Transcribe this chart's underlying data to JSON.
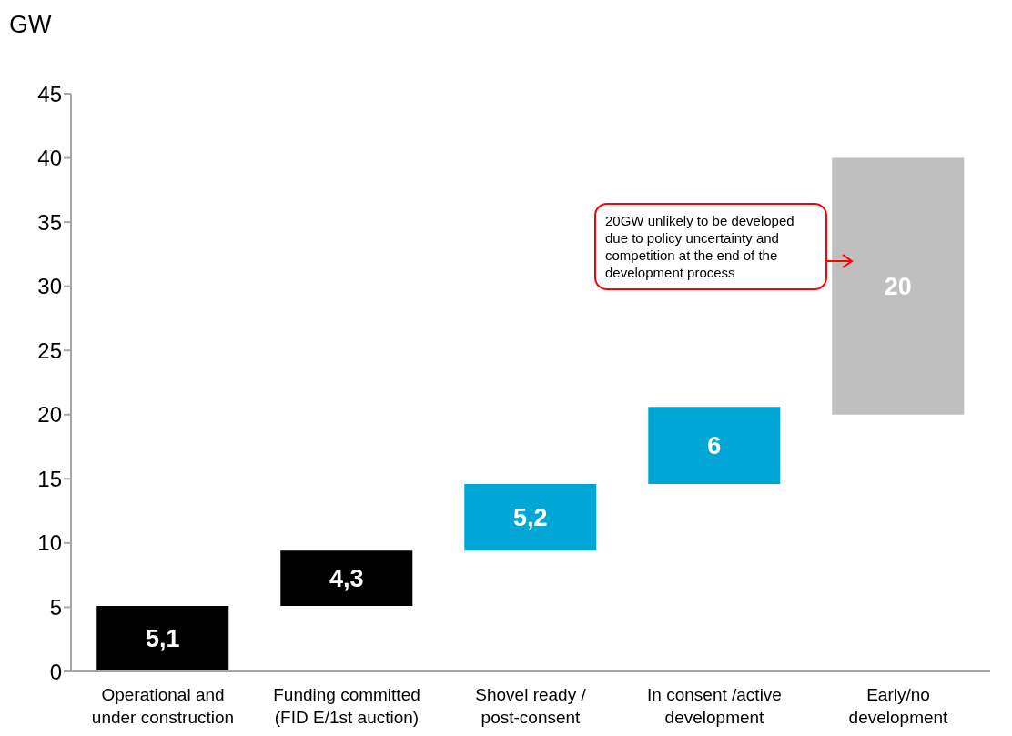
{
  "chart_data": {
    "type": "bar",
    "ylabel": "GW",
    "categories": [
      "Operational and under construction",
      "Funding committed (FID E/1st auction)",
      "Shovel ready / post-consent",
      "In consent /active development",
      "Early/no development"
    ],
    "values": [
      5.1,
      4.3,
      5.2,
      6,
      20
    ],
    "base": [
      0,
      5.1,
      9.4,
      14.6,
      20
    ],
    "colors": [
      "#000000",
      "#000000",
      "#00a6d6",
      "#00a6d6",
      "#bfbfbf"
    ],
    "value_labels": [
      "5,1",
      "4,3",
      "5,2",
      "6",
      "20"
    ],
    "ylim": [
      0,
      45
    ],
    "yticks": [
      0,
      5,
      10,
      15,
      20,
      25,
      30,
      35,
      40,
      45
    ],
    "grid": false,
    "legend": false,
    "annotations": [
      "20GW unlikely to be developed due to policy uncertainty and competition at the end of the development process"
    ]
  }
}
